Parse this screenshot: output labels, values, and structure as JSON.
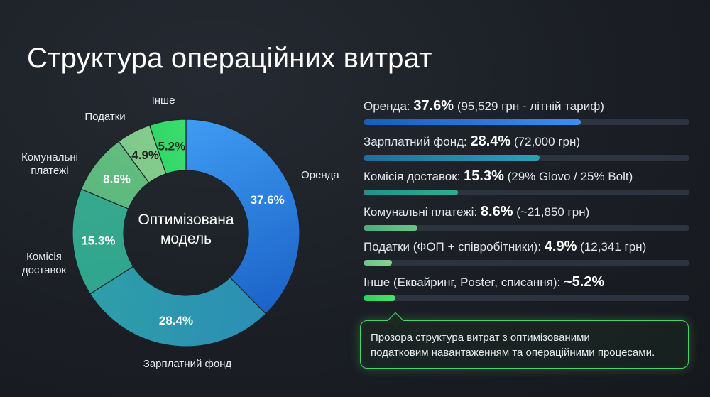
{
  "title": "Структура операційних витрат",
  "chart_data": {
    "type": "donut",
    "center_label": [
      "Оптимізована",
      "модель"
    ],
    "slices": [
      {
        "name": "Оренда",
        "outer_label": [
          "Оренда"
        ],
        "value": 37.6,
        "label": "37.6%",
        "color_start": "#3f9cf2",
        "color_end": "#1b63c9"
      },
      {
        "name": "Зарплатний фонд",
        "outer_label": [
          "Зарплатний фонд"
        ],
        "value": 28.4,
        "label": "28.4%",
        "color_start": "#2b8fb5",
        "color_end": "#2e9ea8"
      },
      {
        "name": "Комісія доставок",
        "outer_label": [
          "Комісія",
          "доставок"
        ],
        "value": 15.3,
        "label": "15.3%",
        "color_start": "#2fa68f",
        "color_end": "#37a88d"
      },
      {
        "name": "Комунальні платежі",
        "outer_label": [
          "Комунальні",
          "платежі"
        ],
        "value": 8.6,
        "label": "8.6%",
        "color_start": "#5cb87e",
        "color_end": "#62bd7e"
      },
      {
        "name": "Податки",
        "outer_label": [
          "Податки"
        ],
        "value": 4.9,
        "label": "4.9%",
        "color_start": "#80c98c",
        "color_end": "#84cc8c"
      },
      {
        "name": "Інше",
        "outer_label": [
          "Інше"
        ],
        "value": 5.2,
        "label": "5.2%",
        "color_start": "#2fd866",
        "color_end": "#3ddc6e"
      }
    ]
  },
  "rows": [
    {
      "label": "Оренда:",
      "pct": "37.6%",
      "detail": "(95,529 грн - літній тариф)",
      "value": 37.6,
      "fill_ratio": 0.667,
      "color_start": "#1c5bbd",
      "color_end": "#3a8ef0"
    },
    {
      "label": "Зарплатний фонд:",
      "pct": "28.4%",
      "detail": "(72,000 грн)",
      "value": 28.4,
      "fill_ratio": 0.54,
      "color_start": "#1f6da8",
      "color_end": "#2aa0b3"
    },
    {
      "label": "Комісія доставок:",
      "pct": "15.3%",
      "detail": "(29% Glovo / 25% Bolt)",
      "value": 15.3,
      "fill_ratio": 0.29,
      "color_start": "#248f8c",
      "color_end": "#35aa90"
    },
    {
      "label": "Комунальні платежі:",
      "pct": "8.6%",
      "detail": "(~21,850 грн)",
      "value": 8.6,
      "fill_ratio": 0.165,
      "color_start": "#4aae7d",
      "color_end": "#6ac683"
    },
    {
      "label": "Податки (ФОП + співробітники):",
      "pct": "4.9%",
      "detail": "(12,341 грн)",
      "value": 4.9,
      "fill_ratio": 0.088,
      "color_start": "#6cc48a",
      "color_end": "#8bd190"
    },
    {
      "label": "Інше (Еквайринг, Poster, списання):",
      "pct": "~5.2%",
      "detail": "",
      "value": 5.2,
      "fill_ratio": 0.098,
      "color_start": "#2fd063",
      "color_end": "#47e073"
    }
  ],
  "note": {
    "lines": [
      "Прозора структура витрат з оптимізованими",
      "податковим навантаженням та операційними процесами."
    ],
    "border_color": "#4fd06a"
  }
}
